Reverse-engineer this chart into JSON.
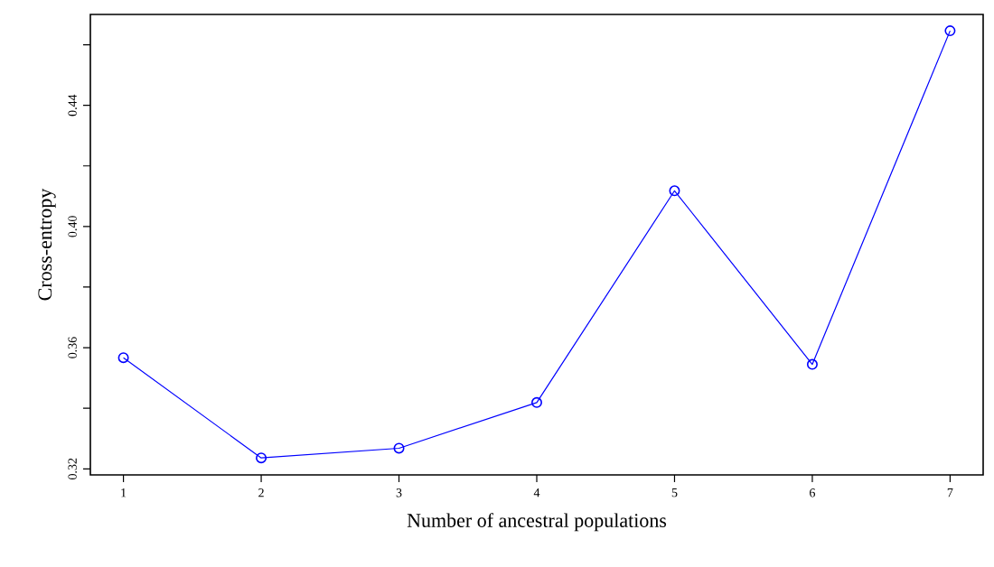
{
  "chart_data": {
    "type": "line",
    "xlabel": "Number of ancestral populations",
    "ylabel": "Cross-entropy",
    "x": [
      1,
      2,
      3,
      4,
      5,
      6,
      7
    ],
    "series": [
      {
        "color": "#0000ff",
        "values": [
          0.3567,
          0.3236,
          0.3268,
          0.3419,
          0.4118,
          0.3545,
          0.4646
        ]
      }
    ],
    "marker": "circle",
    "line_style": "solid",
    "xlim": [
      0.76,
      7.24
    ],
    "ylim": [
      0.318,
      0.47
    ],
    "xticks": [
      1,
      2,
      3,
      4,
      5,
      6,
      7
    ],
    "yticks": [
      0.32,
      {
        "value": 0.34,
        "label": null
      },
      0.36,
      {
        "value": 0.38,
        "label": null
      },
      {
        "value": 0.4,
        "label": "0.40"
      },
      {
        "value": 0.42,
        "label": null
      },
      0.44,
      {
        "value": 0.46,
        "label": null
      }
    ]
  }
}
